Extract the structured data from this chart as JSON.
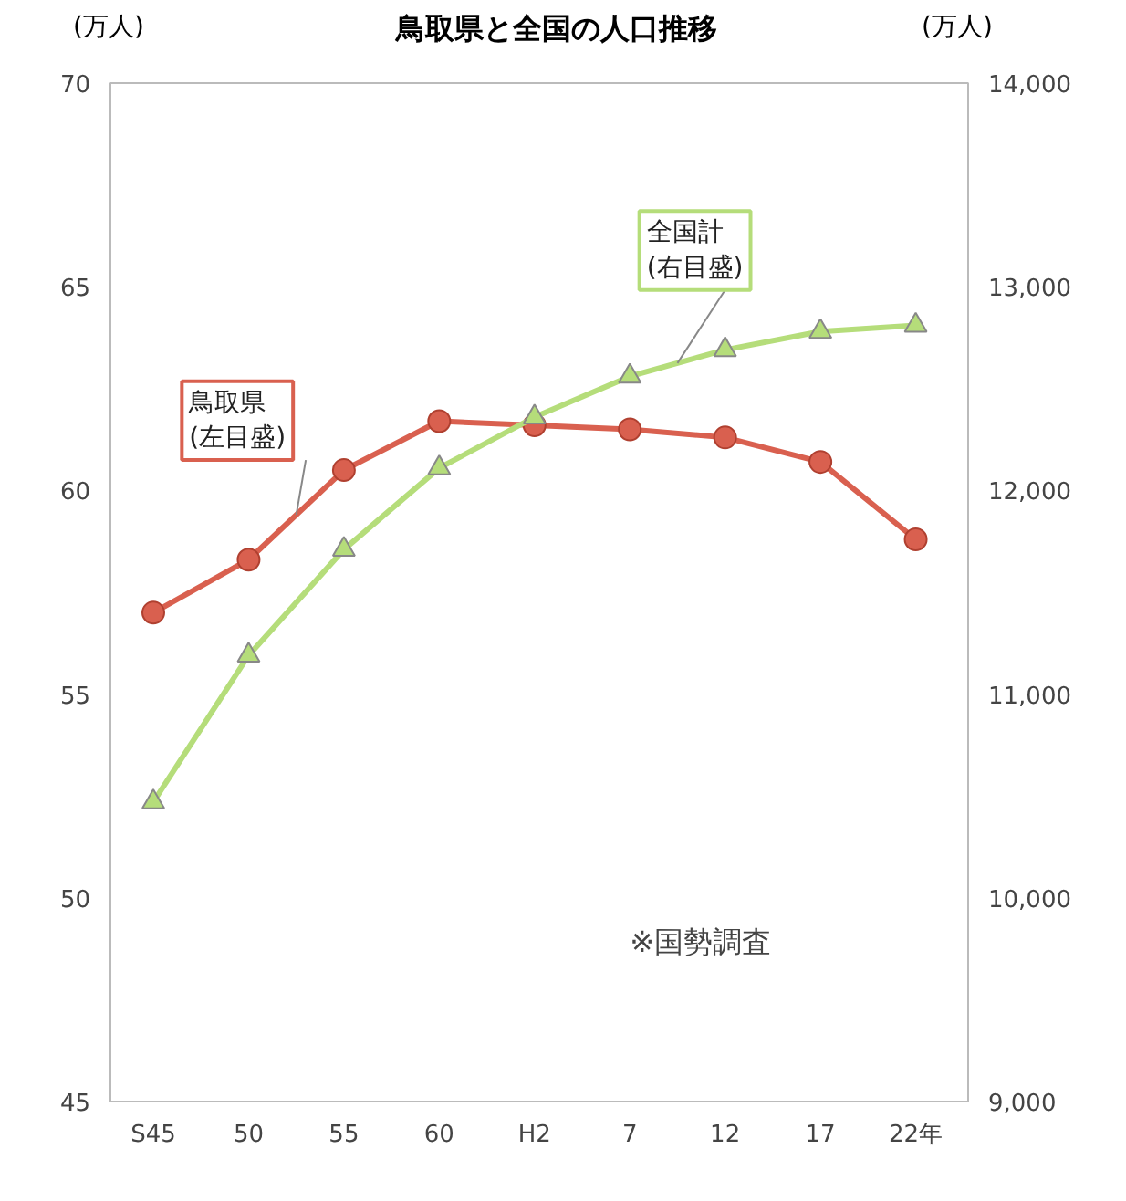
{
  "chart_data": {
    "type": "line",
    "title": "鳥取県と全国の人口推移",
    "ylabel": "(万人)",
    "y2label": "(万人)",
    "categories": [
      "S45",
      "50",
      "55",
      "60",
      "H2",
      "7",
      "12",
      "17",
      "22年"
    ],
    "series": [
      {
        "name": "鳥取県\n(左目盛)",
        "color": "#d9604f",
        "marker": "circle",
        "values": [
          57.0,
          58.3,
          60.5,
          61.7,
          61.6,
          61.5,
          61.3,
          60.7,
          58.8
        ]
      },
      {
        "name": "全国計\n(右目盛)",
        "color": "#b5dd7a",
        "marker": "triangle",
        "axis": "y2",
        "values": [
          10470,
          11190,
          11710,
          12110,
          12360,
          12560,
          12690,
          12780,
          12810
        ]
      }
    ],
    "ylim": [
      45,
      70
    ],
    "yticks": [
      45,
      50,
      55,
      60,
      65,
      70
    ],
    "y2lim": [
      9000,
      14000
    ],
    "y2ticks": [
      {
        "value": 9000,
        "label": "9,000"
      },
      {
        "value": 10000,
        "label": "10,000"
      },
      {
        "value": 11000,
        "label": "11,000"
      },
      {
        "value": 12000,
        "label": "12,000"
      },
      {
        "value": 13000,
        "label": "13,000"
      },
      {
        "value": 14000,
        "label": "14,000"
      }
    ],
    "grid": false,
    "annotations": [
      "※国勢調査"
    ]
  }
}
